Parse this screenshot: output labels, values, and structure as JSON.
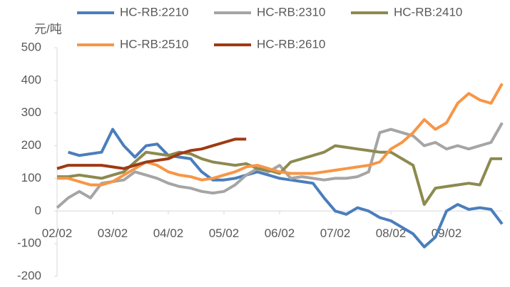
{
  "chart_data": {
    "type": "line",
    "y_label": "元/吨",
    "categories": [
      "02/02",
      null,
      null,
      null,
      null,
      "03/02",
      null,
      null,
      null,
      null,
      "04/02",
      null,
      null,
      null,
      null,
      "05/02",
      null,
      null,
      null,
      null,
      "06/02",
      null,
      null,
      null,
      null,
      "07/02",
      null,
      null,
      null,
      null,
      "08/02",
      null,
      null,
      null,
      null,
      "09/02",
      null,
      null,
      null,
      null,
      null
    ],
    "ylim": [
      -200,
      500
    ],
    "yticks": [
      -200,
      -100,
      0,
      100,
      200,
      300,
      400,
      500
    ],
    "series": [
      {
        "name": "HC-RB:2210",
        "color": "#4a7ebb",
        "values": [
          null,
          180,
          170,
          175,
          180,
          250,
          200,
          165,
          200,
          205,
          170,
          165,
          160,
          120,
          95,
          95,
          100,
          110,
          120,
          110,
          100,
          95,
          90,
          85,
          40,
          0,
          -10,
          10,
          0,
          -20,
          -30,
          -50,
          -70,
          -110,
          -80,
          0,
          20,
          5,
          10,
          5,
          -40
        ]
      },
      {
        "name": "HC-RB:2310",
        "color": "#a5a5a5",
        "values": [
          10,
          40,
          60,
          40,
          85,
          90,
          95,
          120,
          110,
          100,
          85,
          75,
          70,
          60,
          55,
          60,
          80,
          110,
          130,
          120,
          140,
          100,
          105,
          100,
          95,
          100,
          100,
          105,
          120,
          240,
          250,
          240,
          230,
          200,
          210,
          190,
          200,
          190,
          200,
          210,
          270
        ]
      },
      {
        "name": "HC-RB:2410",
        "color": "#8c8a4f",
        "values": [
          105,
          105,
          110,
          105,
          100,
          110,
          120,
          150,
          180,
          175,
          170,
          180,
          175,
          160,
          150,
          145,
          140,
          145,
          130,
          125,
          115,
          150,
          160,
          170,
          180,
          200,
          195,
          190,
          185,
          180,
          180,
          160,
          140,
          20,
          70,
          75,
          80,
          85,
          80,
          160,
          160
        ]
      },
      {
        "name": "HC-RB:2510",
        "color": "#f79646",
        "values": [
          100,
          100,
          90,
          80,
          80,
          90,
          110,
          130,
          150,
          140,
          120,
          110,
          105,
          95,
          100,
          110,
          120,
          135,
          140,
          130,
          120,
          115,
          115,
          115,
          120,
          125,
          130,
          135,
          140,
          150,
          190,
          210,
          240,
          280,
          250,
          270,
          330,
          360,
          340,
          330,
          390
        ]
      },
      {
        "name": "HC-RB:2610",
        "color": "#9e3a13",
        "values": [
          130,
          140,
          140,
          140,
          140,
          135,
          130,
          140,
          150,
          155,
          160,
          175,
          185,
          190,
          200,
          210,
          220,
          220,
          null,
          null,
          null,
          null,
          null,
          null,
          null,
          null,
          null,
          null,
          null,
          null,
          null,
          null,
          null,
          null,
          null,
          null,
          null,
          null,
          null,
          null,
          null
        ]
      }
    ]
  }
}
